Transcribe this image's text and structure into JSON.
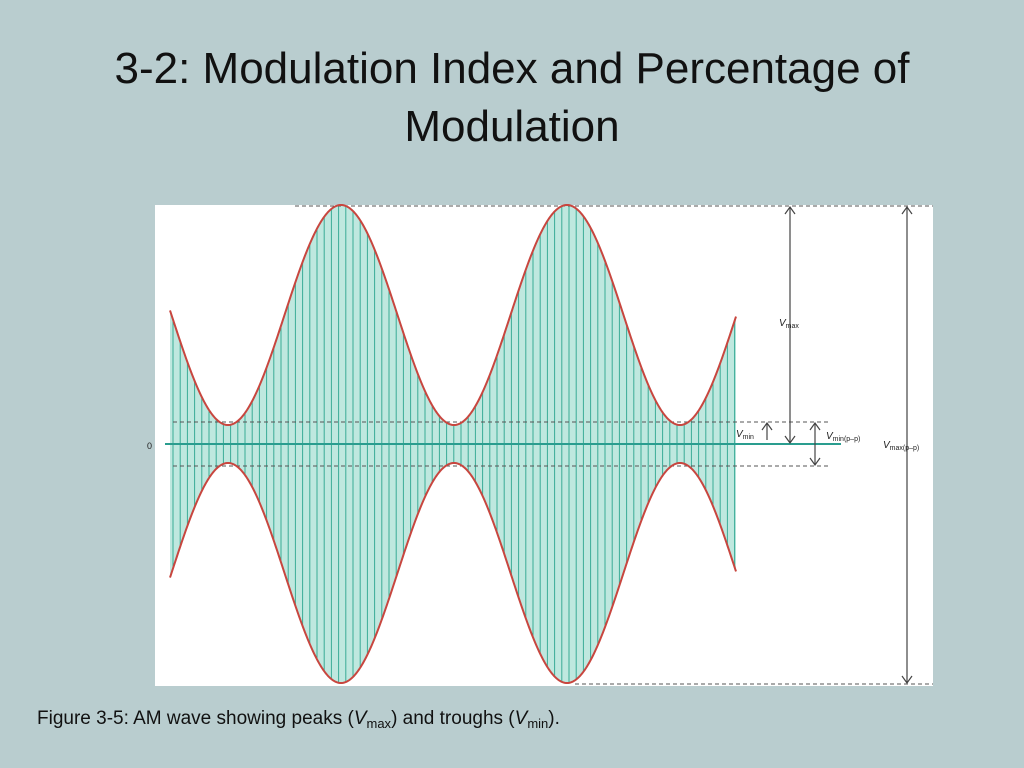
{
  "slide": {
    "title": "3-2: Modulation Index and Percentage of Modulation",
    "caption_prefix": "Figure 3-5: AM wave showing peaks (",
    "caption_vmax_v": "V",
    "caption_vmax_sub": "max",
    "caption_middle": ") and troughs (",
    "caption_vmin_v": "V",
    "caption_vmin_sub": "min",
    "caption_suffix": ")."
  },
  "diagram": {
    "zero_label": "0",
    "vmax_label_v": "V",
    "vmax_label_sub": "max",
    "vmin_label_v": "V",
    "vmin_label_sub": "min",
    "vminpp_label_v": "V",
    "vminpp_label_sub": "min(p–p)",
    "vmaxpp_label_v": "V",
    "vmaxpp_label_sub": "max(p–p)",
    "colors": {
      "envelope": "#c8463f",
      "carrier_fill": "#bfe8df",
      "carrier_lines": "#3aab96",
      "axis": "#2a9d8f",
      "guides": "#555555",
      "arrows": "#444444",
      "background": "#b9cdcf",
      "panel": "#ffffff"
    }
  }
}
